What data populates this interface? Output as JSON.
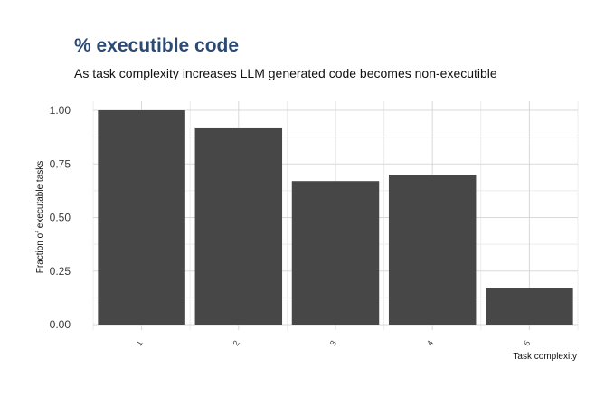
{
  "chart_data": {
    "type": "bar",
    "title": "% executible code",
    "subtitle": "As task complexity increases LLM generated code becomes non-executible",
    "xlabel": "Task complexity",
    "ylabel": "Fraction of executable tasks",
    "categories": [
      "1",
      "2",
      "3",
      "4",
      "5"
    ],
    "values": [
      1.0,
      0.92,
      0.67,
      0.7,
      0.17
    ],
    "ylim": [
      0,
      1.0
    ],
    "yticks": [
      "0.00",
      "0.25",
      "0.50",
      "0.75",
      "1.00"
    ],
    "grid": true,
    "legend": "none",
    "colors": {
      "bar": "#474747",
      "title": "#2c4a72"
    }
  }
}
